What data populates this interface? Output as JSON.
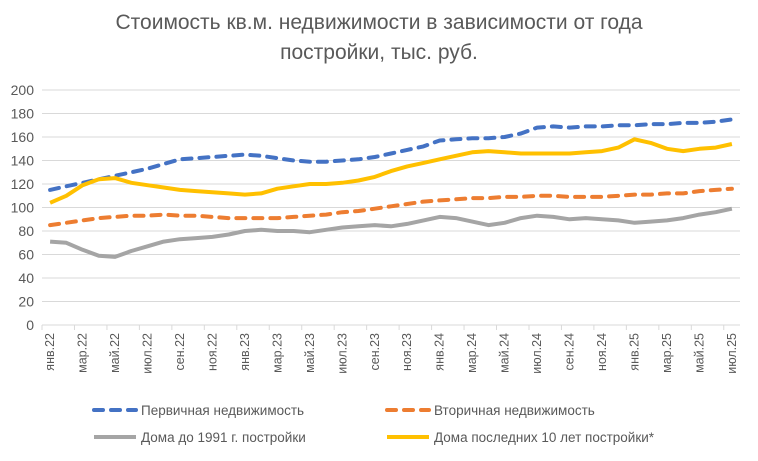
{
  "chart_data": {
    "type": "line",
    "title_lines": [
      "Стоимость кв.м. недвижимости в зависимости от года",
      "постройки, тыс. руб."
    ],
    "xlabel": "",
    "ylabel": "",
    "ylim": [
      0,
      200
    ],
    "yticks": [
      0,
      20,
      40,
      60,
      80,
      100,
      120,
      140,
      160,
      180,
      200
    ],
    "grid": true,
    "legend_position": "bottom",
    "categories": [
      "янв.22",
      "фев.22",
      "мар.22",
      "апр.22",
      "май.22",
      "июн.22",
      "июл.22",
      "авг.22",
      "сен.22",
      "окт.22",
      "ноя.22",
      "дек.22",
      "янв.23",
      "фев.23",
      "мар.23",
      "апр.23",
      "май.23",
      "июн.23",
      "июл.23",
      "авг.23",
      "сен.23",
      "окт.23",
      "ноя.23",
      "дек.23",
      "янв.24",
      "фев.24",
      "мар.24",
      "апр.24",
      "май.24",
      "июн.24",
      "июл.24",
      "авг.24",
      "сен.24",
      "окт.24",
      "ноя.24",
      "дек.24",
      "янв.25",
      "фев.25",
      "мар.25",
      "апр.25",
      "май.25",
      "июн.25",
      "июл.25"
    ],
    "series": [
      {
        "name": "Первичная недвижимость",
        "color": "#4472C4",
        "style": "dashed",
        "values": [
          115,
          118,
          121,
          124,
          127,
          130,
          133,
          137,
          141,
          142,
          143,
          144,
          145,
          144,
          142,
          140,
          139,
          139,
          140,
          141,
          143,
          146,
          149,
          152,
          157,
          158,
          159,
          159,
          160,
          163,
          168,
          169,
          168,
          169,
          169,
          170,
          170,
          171,
          171,
          172,
          172,
          173,
          175
        ]
      },
      {
        "name": "Вторичная недвижимость",
        "color": "#ED7D31",
        "style": "dashed",
        "values": [
          85,
          87,
          89,
          91,
          92,
          93,
          93,
          94,
          93,
          93,
          92,
          91,
          91,
          91,
          91,
          92,
          93,
          94,
          96,
          97,
          99,
          101,
          103,
          105,
          106,
          107,
          108,
          108,
          109,
          109,
          110,
          110,
          109,
          109,
          109,
          110,
          111,
          111,
          112,
          112,
          114,
          115,
          116
        ]
      },
      {
        "name": "Дома до 1991 г. постройки",
        "color": "#A5A5A5",
        "style": "solid",
        "values": [
          71,
          70,
          64,
          59,
          58,
          63,
          67,
          71,
          73,
          74,
          75,
          77,
          80,
          81,
          80,
          80,
          79,
          81,
          83,
          84,
          85,
          84,
          86,
          89,
          92,
          91,
          88,
          85,
          87,
          91,
          93,
          92,
          90,
          91,
          90,
          89,
          87,
          88,
          89,
          91,
          94,
          96,
          99
        ]
      },
      {
        "name": "Дома последних 10 лет постройки*",
        "color": "#FFC000",
        "style": "solid",
        "values": [
          104,
          110,
          119,
          124,
          125,
          121,
          119,
          117,
          115,
          114,
          113,
          112,
          111,
          112,
          116,
          118,
          120,
          120,
          121,
          123,
          126,
          131,
          135,
          138,
          141,
          144,
          147,
          148,
          147,
          146,
          146,
          146,
          146,
          147,
          148,
          151,
          158,
          155,
          150,
          148,
          150,
          151,
          154
        ]
      }
    ]
  }
}
